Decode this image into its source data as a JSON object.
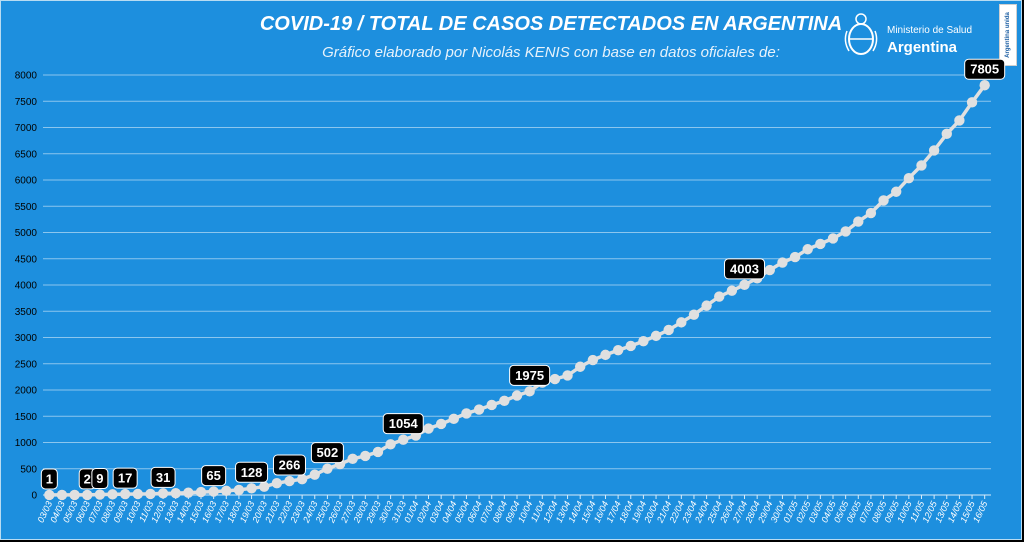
{
  "header": {
    "title": "COVID-19  /  TOTAL DE CASOS DETECTADOS EN ARGENTINA",
    "subtitle": "Gráfico elaborado por Nicolás KENIS con base en datos oficiales de:"
  },
  "logo": {
    "org": "Ministerio de Salud",
    "country": "Argentina",
    "badge": "Argentina unida"
  },
  "colors": {
    "background": "#1d8fde",
    "line": "#e0e0e0",
    "label_box": "#000000",
    "gridline": "#8cc6ee"
  },
  "chart_data": {
    "type": "line",
    "title": "COVID-19  /  TOTAL DE CASOS DETECTADOS EN ARGENTINA",
    "ylim": [
      0,
      8000
    ],
    "yticks": [
      0,
      500,
      1000,
      1500,
      2000,
      2500,
      3000,
      3500,
      4000,
      4500,
      5000,
      5500,
      6000,
      6500,
      7000,
      7500,
      8000
    ],
    "grid": true,
    "x": [
      "03/03",
      "04/03",
      "05/03",
      "06/03",
      "07/03",
      "08/03",
      "09/03",
      "10/03",
      "11/03",
      "12/03",
      "13/03",
      "14/03",
      "15/03",
      "16/03",
      "17/03",
      "18/03",
      "19/03",
      "20/03",
      "21/03",
      "22/03",
      "23/03",
      "24/03",
      "25/03",
      "26/03",
      "27/03",
      "28/03",
      "29/03",
      "30/03",
      "31/03",
      "01/04",
      "02/04",
      "03/04",
      "04/04",
      "05/04",
      "06/04",
      "07/04",
      "08/04",
      "09/04",
      "10/04",
      "11/04",
      "12/04",
      "13/04",
      "14/04",
      "15/04",
      "16/04",
      "17/04",
      "18/04",
      "19/04",
      "20/04",
      "21/04",
      "22/04",
      "23/04",
      "24/04",
      "25/04",
      "26/04",
      "27/04",
      "28/04",
      "29/04",
      "30/04",
      "01/05",
      "02/05",
      "03/05",
      "04/05",
      "05/05",
      "06/05",
      "07/05",
      "08/05",
      "09/05",
      "10/05",
      "11/05",
      "12/05",
      "13/05",
      "14/05",
      "15/05",
      "16/05"
    ],
    "series": [
      {
        "values": [
          1,
          1,
          1,
          2,
          9,
          12,
          17,
          19,
          21,
          31,
          34,
          45,
          56,
          65,
          79,
          97,
          128,
          158,
          225,
          266,
          301,
          387,
          502,
          589,
          690,
          745,
          820,
          966,
          1054,
          1133,
          1265,
          1353,
          1451,
          1554,
          1628,
          1715,
          1795,
          1894,
          1975,
          2142,
          2208,
          2277,
          2443,
          2571,
          2669,
          2758,
          2839,
          2930,
          3031,
          3144,
          3288,
          3435,
          3607,
          3780,
          3892,
          4003,
          4127,
          4285,
          4428,
          4532,
          4681,
          4783,
          4887,
          5020,
          5208,
          5371,
          5611,
          5776,
          6034,
          6278,
          6563,
          6879,
          7134,
          7479,
          7805
        ]
      }
    ],
    "data_labels": [
      {
        "x": "03/03",
        "value": 1
      },
      {
        "x": "06/03",
        "value": 2
      },
      {
        "x": "07/03",
        "value": 9
      },
      {
        "x": "09/03",
        "value": 17
      },
      {
        "x": "12/03",
        "value": 31
      },
      {
        "x": "16/03",
        "value": 65
      },
      {
        "x": "19/03",
        "value": 128
      },
      {
        "x": "22/03",
        "value": 266
      },
      {
        "x": "25/03",
        "value": 502
      },
      {
        "x": "31/03",
        "value": 1054
      },
      {
        "x": "10/04",
        "value": 1975
      },
      {
        "x": "27/04",
        "value": 4003
      },
      {
        "x": "16/05",
        "value": 7805
      }
    ]
  }
}
